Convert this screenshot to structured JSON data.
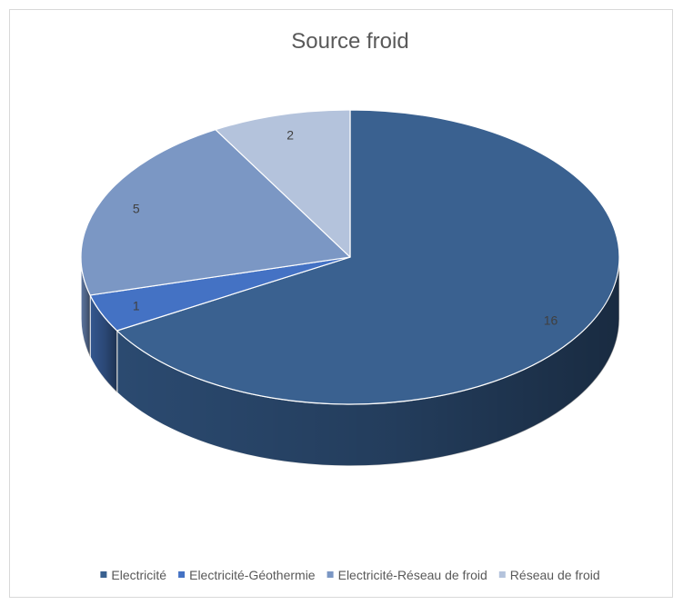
{
  "chart_data": {
    "type": "pie",
    "title": "Source froid",
    "categories": [
      "Electricité",
      "Electricité-Géothermie",
      "Electricité-Réseau de froid",
      "Réseau de froid"
    ],
    "values": [
      16,
      1,
      5,
      2
    ],
    "colors": [
      "#3a6190",
      "#4472c4",
      "#7b97c4",
      "#b4c3dc"
    ],
    "side_colors": [
      "#2b4a70",
      "#34578f",
      "#5d76a0",
      "#8fa0bd"
    ],
    "legend_position": "bottom",
    "data_labels": true,
    "style": "3d"
  }
}
